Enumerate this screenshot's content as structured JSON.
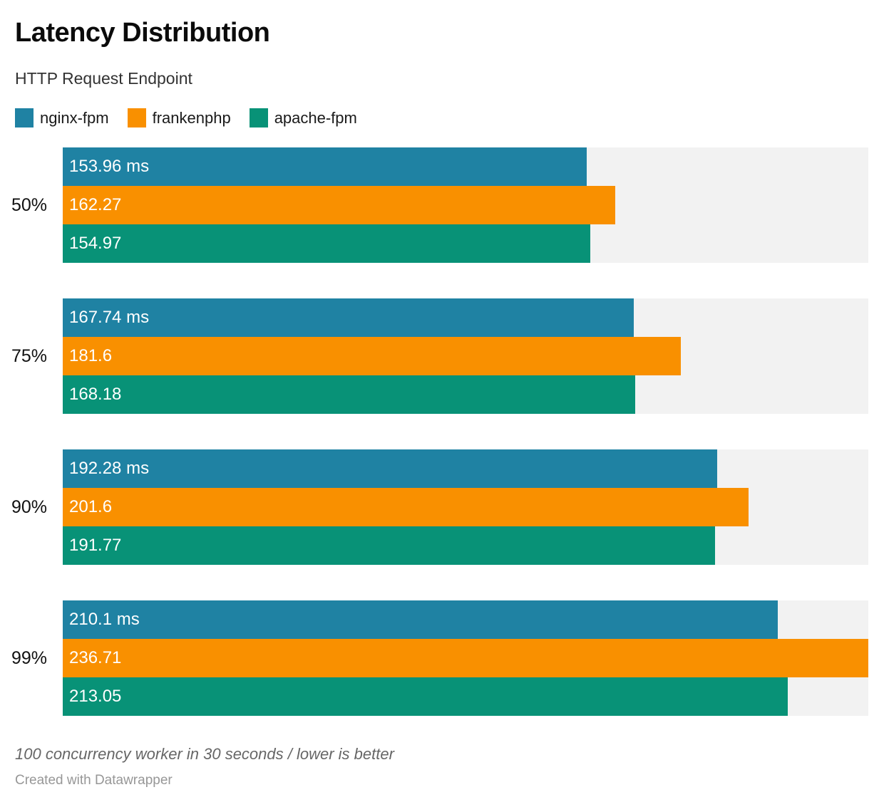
{
  "header": {
    "title": "Latency Distribution",
    "subtitle": "HTTP Request Endpoint"
  },
  "chart_data": {
    "type": "bar",
    "orientation": "horizontal",
    "title": "Latency Distribution",
    "subtitle": "HTTP Request Endpoint",
    "categories": [
      "50%",
      "75%",
      "90%",
      "99%"
    ],
    "series": [
      {
        "name": "nginx-fpm",
        "color": "#1f82a3",
        "values": [
          153.96,
          167.74,
          192.28,
          210.1
        ],
        "bar_labels": [
          "153.96 ms",
          "167.74 ms",
          "192.28 ms",
          "210.1 ms"
        ]
      },
      {
        "name": "frankenphp",
        "color": "#f99000",
        "values": [
          162.27,
          181.6,
          201.6,
          236.71
        ],
        "bar_labels": [
          "162.27",
          "181.6",
          "201.6",
          "236.71"
        ]
      },
      {
        "name": "apache-fpm",
        "color": "#089277",
        "values": [
          154.97,
          168.18,
          191.77,
          213.05
        ],
        "bar_labels": [
          "154.97",
          "168.18",
          "191.77",
          "213.05"
        ]
      }
    ],
    "unit": "ms",
    "xlim": [
      0,
      236.71
    ],
    "legend_position": "top",
    "grid": false,
    "track_color": "#f2f2f2",
    "value_label_color": "#ffffff"
  },
  "footer": {
    "note": "100 concurrency worker in 30 seconds / lower is better",
    "credit": "Created with Datawrapper"
  }
}
